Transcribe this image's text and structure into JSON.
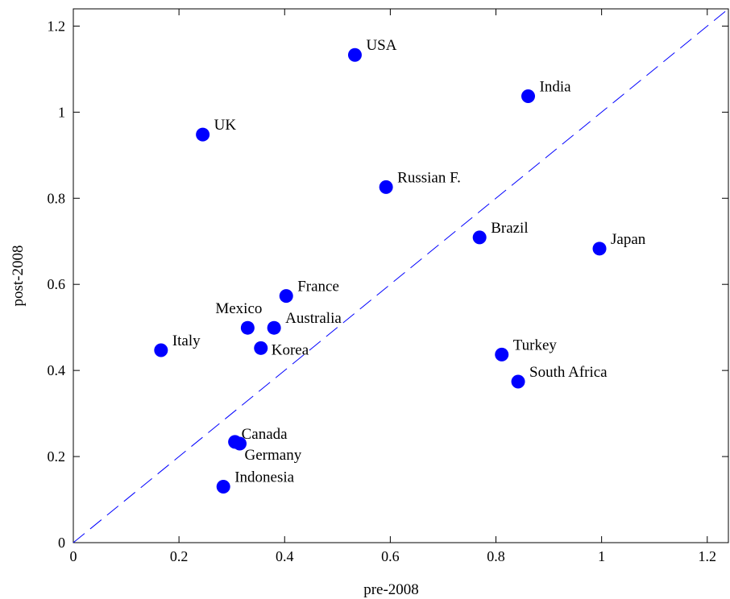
{
  "chart_data": {
    "type": "scatter",
    "xlabel": "pre-2008",
    "ylabel": "post-2008",
    "xlim": [
      0,
      1.24
    ],
    "ylim": [
      0,
      1.24
    ],
    "xticks": [
      "0",
      "0.2",
      "0.4",
      "0.6",
      "0.8",
      "1",
      "1.2"
    ],
    "yticks": [
      "0",
      "0.2",
      "0.4",
      "0.6",
      "0.8",
      "1",
      "1.2"
    ],
    "reference_line": {
      "style": "dashed",
      "from": [
        0,
        0
      ],
      "to": [
        1.24,
        1.24
      ]
    },
    "marker_color": "#0000ff",
    "line_color": "#0000ff",
    "points": [
      {
        "label": "USA",
        "x": 0.533,
        "y": 1.133
      },
      {
        "label": "India",
        "x": 0.861,
        "y": 1.037
      },
      {
        "label": "UK",
        "x": 0.245,
        "y": 0.948
      },
      {
        "label": "Russian F.",
        "x": 0.592,
        "y": 0.826
      },
      {
        "label": "Brazil",
        "x": 0.769,
        "y": 0.709
      },
      {
        "label": "Japan",
        "x": 0.996,
        "y": 0.683
      },
      {
        "label": "France",
        "x": 0.403,
        "y": 0.573
      },
      {
        "label": "Mexico",
        "x": 0.33,
        "y": 0.499
      },
      {
        "label": "Australia",
        "x": 0.38,
        "y": 0.499
      },
      {
        "label": "Italy",
        "x": 0.166,
        "y": 0.447
      },
      {
        "label": "Korea",
        "x": 0.355,
        "y": 0.452
      },
      {
        "label": "Turkey",
        "x": 0.811,
        "y": 0.437
      },
      {
        "label": "South Africa",
        "x": 0.842,
        "y": 0.374
      },
      {
        "label": "Canada",
        "x": 0.306,
        "y": 0.234
      },
      {
        "label": "Germany",
        "x": 0.315,
        "y": 0.23
      },
      {
        "label": "Indonesia",
        "x": 0.284,
        "y": 0.13
      }
    ]
  }
}
